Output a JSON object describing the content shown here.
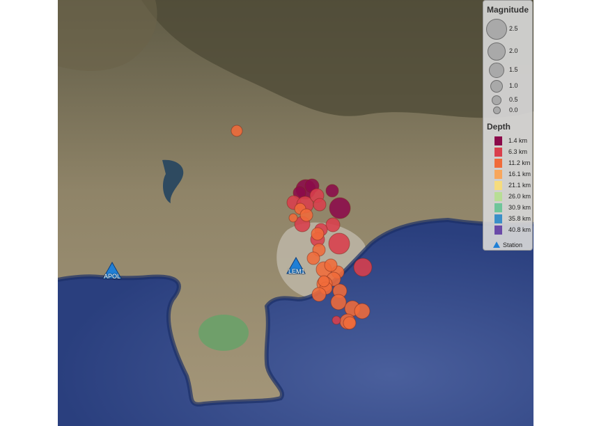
{
  "legend": {
    "magnitude_title": "Magnitude",
    "magnitudes": [
      {
        "label": "2.5",
        "value": 2.5
      },
      {
        "label": "2.0",
        "value": 2.0
      },
      {
        "label": "1.5",
        "value": 1.5
      },
      {
        "label": "1.0",
        "value": 1.0
      },
      {
        "label": "0.5",
        "value": 0.5
      },
      {
        "label": "0.0",
        "value": 0.0
      }
    ],
    "depth_title": "Depth",
    "depths": [
      {
        "label": "1.4 km",
        "color": "#8b0a4a"
      },
      {
        "label": "6.3 km",
        "color": "#d93f4c"
      },
      {
        "label": "11.2 km",
        "color": "#f06b3a"
      },
      {
        "label": "16.1 km",
        "color": "#f8a65c"
      },
      {
        "label": "21.1 km",
        "color": "#f6dc7e"
      },
      {
        "label": "26.0 km",
        "color": "#b8de95"
      },
      {
        "label": "30.9 km",
        "color": "#6fc59a"
      },
      {
        "label": "35.8 km",
        "color": "#3b8fc8"
      },
      {
        "label": "40.8 km",
        "color": "#6a4aa8"
      }
    ],
    "station_label": "Station"
  },
  "stations": [
    {
      "label": "APOL"
    },
    {
      "label": "LEM1"
    }
  ],
  "colors": {
    "sea": "#2e4a8c",
    "land": "#9c8e72",
    "station": "#1f7fd6"
  }
}
